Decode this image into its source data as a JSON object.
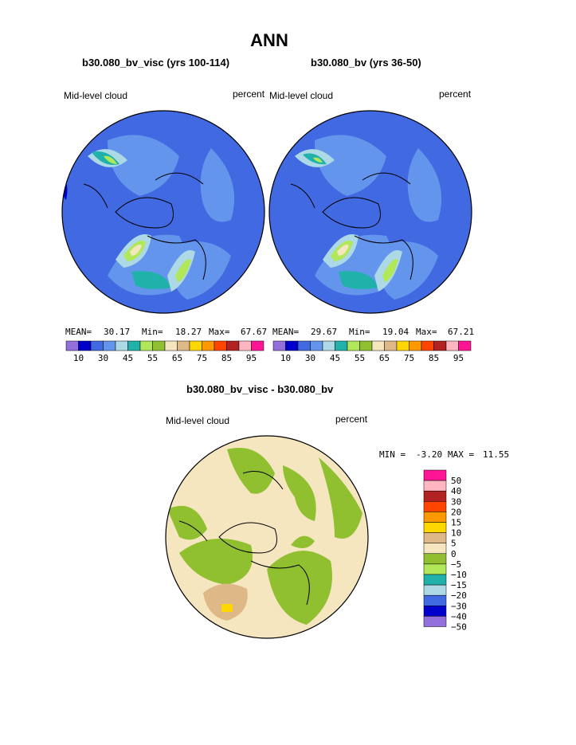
{
  "page": {
    "title": "ANN",
    "left_subtitle": "b30.080_bv_visc (yrs 100-114)",
    "right_subtitle": "b30.080_bv (yrs 36-50)",
    "diff_title": "b30.080_bv_visc - b30.080_bv"
  },
  "chart_data": [
    {
      "type": "heatmap",
      "projection": "north polar stereographic",
      "title": "b30.080_bv_visc (yrs 100-114)",
      "left_label": "Mid-level cloud",
      "right_label": "percent",
      "stats": {
        "mean_label": "MEAN=",
        "mean": "30.17",
        "min_label": "Min=",
        "min": "18.27",
        "max_label": "Max=",
        "max": "67.67"
      },
      "colorbar_levels": [
        10,
        15,
        20,
        25,
        30,
        35,
        40,
        45,
        50,
        55,
        60,
        65,
        70,
        75,
        80,
        85,
        90,
        95
      ],
      "colorbar_tick_labels": [
        "10",
        "30",
        "45",
        "55",
        "65",
        "75",
        "85",
        "95"
      ]
    },
    {
      "type": "heatmap",
      "projection": "north polar stereographic",
      "title": "b30.080_bv (yrs 36-50)",
      "left_label": "Mid-level cloud",
      "right_label": "percent",
      "stats": {
        "mean_label": "MEAN=",
        "mean": "29.67",
        "min_label": "Min=",
        "min": "19.04",
        "max_label": "Max=",
        "max": "67.21"
      },
      "colorbar_levels": [
        10,
        15,
        20,
        25,
        30,
        35,
        40,
        45,
        50,
        55,
        60,
        65,
        70,
        75,
        80,
        85,
        90,
        95
      ],
      "colorbar_tick_labels": [
        "10",
        "30",
        "45",
        "55",
        "65",
        "75",
        "85",
        "95"
      ]
    },
    {
      "type": "heatmap",
      "projection": "north polar stereographic",
      "title": "b30.080_bv_visc - b30.080_bv",
      "left_label": "Mid-level cloud",
      "right_label": "percent",
      "stats": {
        "min_label": "MIN =",
        "min": "-3.20",
        "max_label": "MAX =",
        "max": "11.55"
      },
      "colorbar_levels": [
        50,
        40,
        30,
        20,
        15,
        10,
        5,
        0,
        -5,
        -10,
        -15,
        -20,
        -30,
        -40,
        -50
      ],
      "colorbar_tick_labels": [
        "50",
        "40",
        "30",
        "20",
        "15",
        "10",
        "5",
        "0",
        "−5",
        "−10",
        "−15",
        "−20",
        "−30",
        "−40",
        "−50"
      ]
    }
  ],
  "colors": {
    "abs_palette": [
      "#9370db",
      "#0000cd",
      "#4169e1",
      "#6495ed",
      "#add8e6",
      "#20b2aa",
      "#b0e85a",
      "#90c030",
      "#f5e6c0",
      "#deb887",
      "#ffd700",
      "#ff9900",
      "#ff4500",
      "#b22222",
      "#ffb6c1",
      "#ff1493"
    ],
    "diff_palette": [
      "#ff1493",
      "#ffb6c1",
      "#b22222",
      "#ff4500",
      "#ff9900",
      "#ffd700",
      "#deb887",
      "#f5e6c0",
      "#90c030",
      "#b0e85a",
      "#20b2aa",
      "#add8e6",
      "#4169e1",
      "#0000cd",
      "#9370db"
    ]
  }
}
